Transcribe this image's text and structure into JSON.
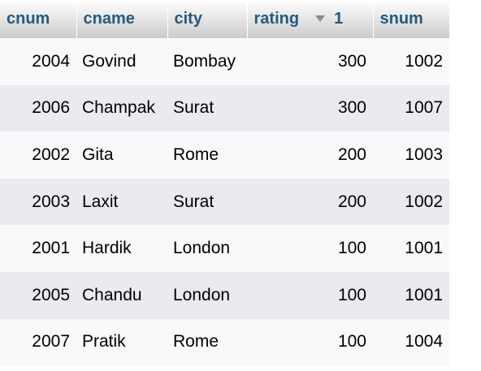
{
  "table": {
    "headers": {
      "cnum": "cnum",
      "cname": "cname",
      "city": "city",
      "rating": "rating",
      "sort_order": "1",
      "snum": "snum"
    },
    "sort_icon": "sort-descending-icon",
    "colors": {
      "header_text": "#235a81",
      "row_odd": "#f8f9fa",
      "row_even": "#e9ebee"
    },
    "rows": [
      {
        "cnum": "2004",
        "cname": "Govind",
        "city": "Bombay",
        "rating": "300",
        "snum": "1002"
      },
      {
        "cnum": "2006",
        "cname": "Champak",
        "city": "Surat",
        "rating": "300",
        "snum": "1007"
      },
      {
        "cnum": "2002",
        "cname": "Gita",
        "city": "Rome",
        "rating": "200",
        "snum": "1003"
      },
      {
        "cnum": "2003",
        "cname": "Laxit",
        "city": "Surat",
        "rating": "200",
        "snum": "1002"
      },
      {
        "cnum": "2001",
        "cname": "Hardik",
        "city": "London",
        "rating": "100",
        "snum": "1001"
      },
      {
        "cnum": "2005",
        "cname": "Chandu",
        "city": "London",
        "rating": "100",
        "snum": "1001"
      },
      {
        "cnum": "2007",
        "cname": "Pratik",
        "city": "Rome",
        "rating": "100",
        "snum": "1004"
      }
    ]
  }
}
